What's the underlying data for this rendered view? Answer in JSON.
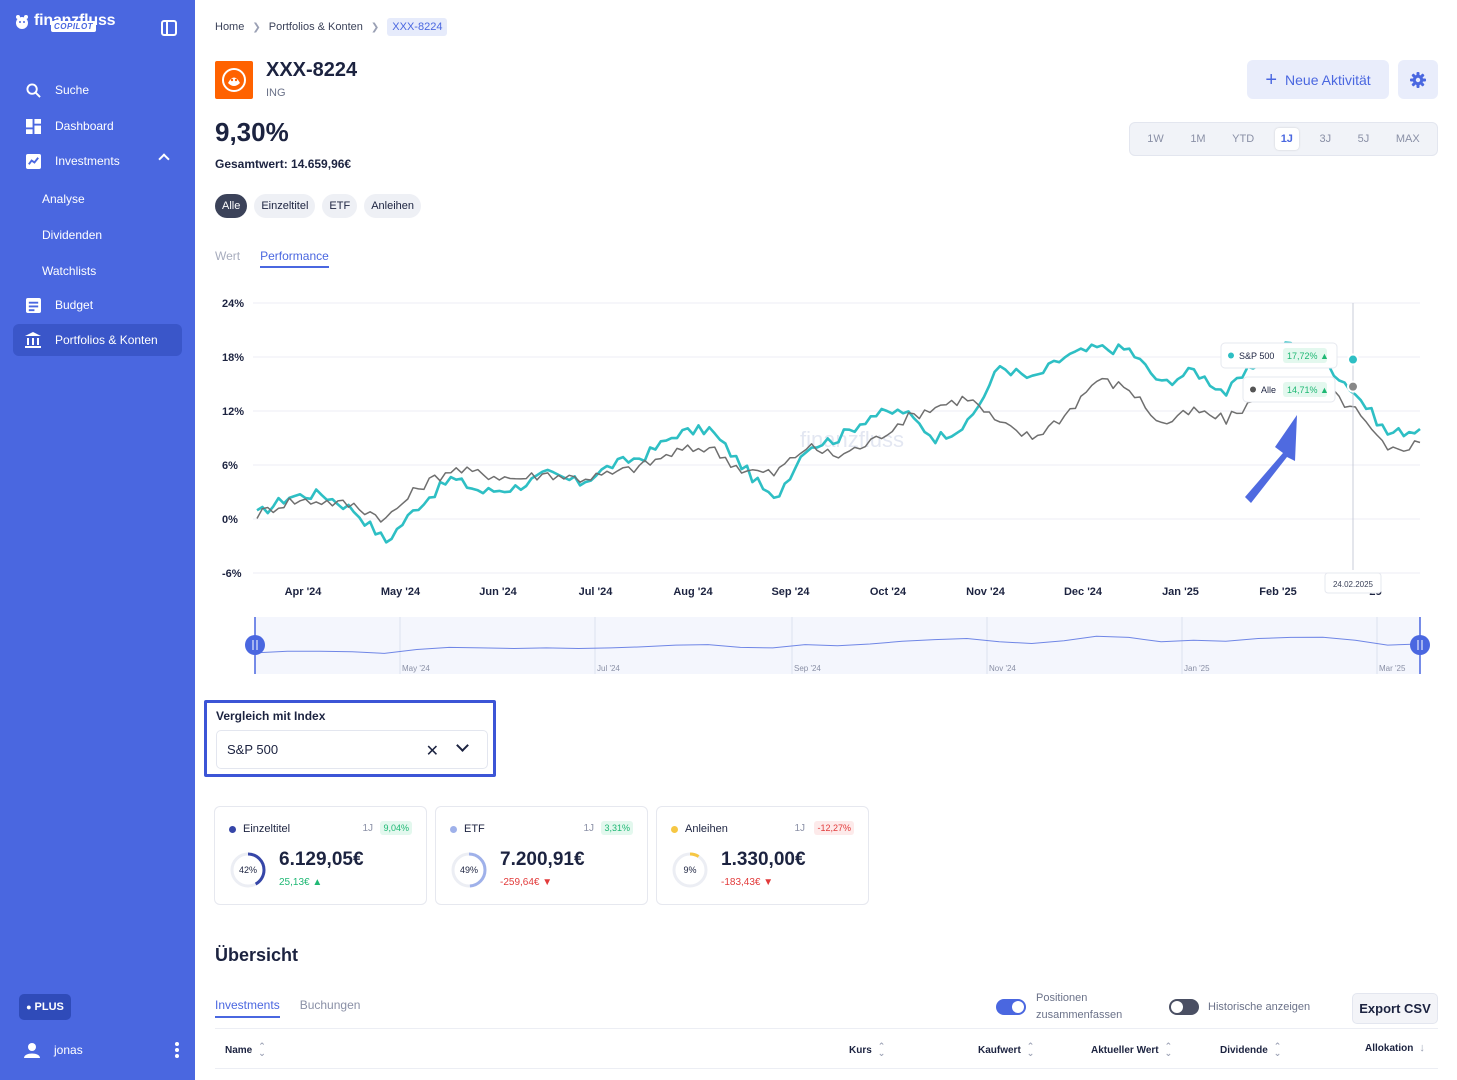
{
  "brand": {
    "name": "finanzfluss",
    "badge": "COPILOT"
  },
  "nav": {
    "search": "Suche",
    "dashboard": "Dashboard",
    "investments": "Investments",
    "analyse": "Analyse",
    "dividenden": "Dividenden",
    "watchlists": "Watchlists",
    "budget": "Budget",
    "portfolios": "Portfolios & Konten"
  },
  "plan_badge": "PLUS",
  "user": "jonas",
  "breadcrumbs": [
    "Home",
    "Portfolios & Konten",
    "XXX-8224"
  ],
  "account": {
    "title": "XXX-8224",
    "bank": "ING"
  },
  "performance_value": "9,30%",
  "total_value": "Gesamtwert: 14.659,96€",
  "actions": {
    "new_activity": "Neue Aktivität"
  },
  "ranges": [
    "1W",
    "1M",
    "YTD",
    "1J",
    "3J",
    "5J",
    "MAX"
  ],
  "active_range": "1J",
  "filters": [
    "Alle",
    "Einzeltitel",
    "ETF",
    "Anleihen"
  ],
  "view_tabs": {
    "value": "Wert",
    "performance": "Performance"
  },
  "watermark": "finanzfluss",
  "chart_data": {
    "type": "line",
    "y_ticks": [
      "24%",
      "18%",
      "12%",
      "6%",
      "0%",
      "-6%"
    ],
    "ylim": [
      -6,
      24
    ],
    "x_ticks": [
      "Apr '24",
      "May '24",
      "Jun '24",
      "Jul '24",
      "Aug '24",
      "Sep '24",
      "Oct '24",
      "Nov '24",
      "Dec '24",
      "Jan '25",
      "Feb '25",
      "25"
    ],
    "series": [
      {
        "name": "S&P 500",
        "color": "#2ebfc4",
        "values": [
          0.5,
          2.5,
          2.8,
          1.0,
          -2.5,
          1.5,
          4.5,
          3.0,
          3.5,
          5.0,
          4.0,
          6.0,
          7.0,
          9.5,
          10.0,
          6.0,
          2.0,
          8.0,
          9.0,
          11.5,
          12.0,
          9.0,
          10.5,
          17.0,
          15.5,
          18.0,
          19.0,
          18.8,
          15.0,
          16.5,
          14.0,
          17.5,
          19.5,
          17.7,
          14.0,
          9.5,
          10.0
        ]
      },
      {
        "name": "Alle",
        "color": "#6f6f6f",
        "values": [
          0.5,
          2.0,
          2.0,
          1.5,
          0.0,
          3.5,
          5.5,
          5.0,
          4.5,
          5.0,
          4.5,
          5.0,
          6.0,
          7.5,
          8.0,
          5.5,
          5.0,
          8.0,
          7.0,
          8.5,
          11.0,
          12.5,
          13.5,
          10.5,
          9.0,
          11.5,
          15.5,
          14.5,
          10.5,
          12.0,
          11.0,
          13.5,
          14.5,
          14.7,
          12.0,
          7.5,
          8.5
        ]
      }
    ],
    "tooltip": {
      "date": "24.02.2025",
      "items": [
        {
          "name": "S&P 500",
          "value": "17,72%",
          "color": "#2ebfc4"
        },
        {
          "name": "Alle",
          "value": "14,71%",
          "color": "#555555"
        }
      ]
    },
    "navigator_ticks": [
      "May '24",
      "Jul '24",
      "Sep '24",
      "Nov '24",
      "Jan '25",
      "Mar '25"
    ]
  },
  "compare": {
    "label": "Vergleich mit Index",
    "value": "S&P 500"
  },
  "cards": [
    {
      "name": "Einzeltitel",
      "period": "1J",
      "pct": "9,04%",
      "share": "42%",
      "share_value": 42,
      "value": "6.129,05€",
      "change": "25,13€ ▲",
      "color": "#3646a8",
      "trend": "pos"
    },
    {
      "name": "ETF",
      "period": "1J",
      "pct": "3,31%",
      "share": "49%",
      "share_value": 49,
      "value": "7.200,91€",
      "change": "-259,64€ ▼",
      "color": "#9fb1ea",
      "trend": "pos"
    },
    {
      "name": "Anleihen",
      "period": "1J",
      "pct": "-12,27%",
      "share": "9%",
      "share_value": 9,
      "value": "1.330,00€",
      "change": "-183,43€ ▼",
      "color": "#f6c744",
      "trend": "neg"
    }
  ],
  "overview": {
    "title": "Übersicht",
    "tabs": {
      "investments": "Investments",
      "bookings": "Buchungen"
    },
    "toggle_merge": "Positionen zusammenfassen",
    "toggle_history": "Historische anzeigen",
    "export": "Export CSV",
    "columns": [
      "Name",
      "Kurs",
      "Kaufwert",
      "Aktueller Wert",
      "Dividende",
      "Allokation"
    ]
  }
}
